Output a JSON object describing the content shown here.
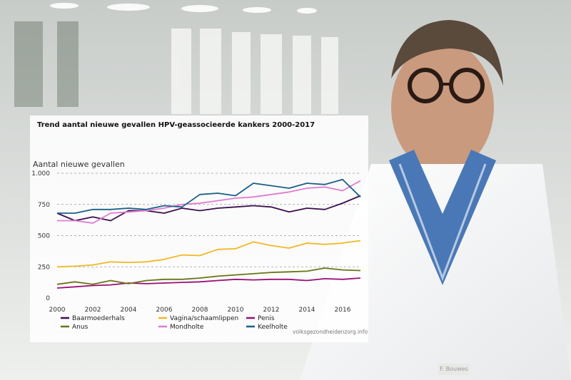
{
  "chart_data": {
    "type": "line",
    "title": "Trend aantal nieuwe gevallen HPV-geassocieerde kankers 2000-2017",
    "ylabel": "Aantal nieuwe gevallen",
    "xlabel": "",
    "ylim": [
      0,
      1000
    ],
    "xlim": [
      2000,
      2017
    ],
    "yticks": [
      0,
      250,
      500,
      750,
      1000
    ],
    "ytick_labels": [
      "0",
      "250",
      "500",
      "750",
      "1.000"
    ],
    "xticks": [
      2000,
      2002,
      2004,
      2006,
      2008,
      2010,
      2012,
      2014,
      2016
    ],
    "ytick_gridlines": true,
    "legend_position": "bottom",
    "x": [
      2000,
      2001,
      2002,
      2003,
      2004,
      2005,
      2006,
      2007,
      2008,
      2009,
      2010,
      2011,
      2012,
      2013,
      2014,
      2015,
      2016,
      2017
    ],
    "series": [
      {
        "name": "Baarmoederhals",
        "color": "#3c0f4f",
        "values": [
          680,
          620,
          650,
          620,
          700,
          700,
          680,
          720,
          700,
          720,
          730,
          740,
          730,
          690,
          720,
          710,
          760,
          820
        ]
      },
      {
        "name": "Vagina/schaamlippen",
        "color": "#f2b824",
        "values": [
          250,
          255,
          265,
          290,
          285,
          290,
          310,
          345,
          340,
          390,
          395,
          450,
          420,
          400,
          440,
          430,
          440,
          460
        ]
      },
      {
        "name": "Penis",
        "color": "#9a0e78",
        "values": [
          80,
          90,
          100,
          105,
          120,
          115,
          120,
          125,
          130,
          140,
          150,
          145,
          150,
          150,
          140,
          155,
          150,
          160
        ]
      },
      {
        "name": "Anus",
        "color": "#6b7417",
        "values": [
          110,
          130,
          110,
          140,
          115,
          140,
          150,
          150,
          160,
          175,
          185,
          195,
          205,
          210,
          215,
          240,
          225,
          220
        ]
      },
      {
        "name": "Mondholte",
        "color": "#e17ad3",
        "values": [
          620,
          620,
          600,
          680,
          690,
          700,
          720,
          750,
          760,
          780,
          800,
          810,
          830,
          850,
          880,
          890,
          860,
          940
        ]
      },
      {
        "name": "Keelholte",
        "color": "#1b5f88",
        "values": [
          680,
          680,
          710,
          710,
          720,
          710,
          740,
          730,
          830,
          840,
          820,
          920,
          900,
          880,
          920,
          910,
          950,
          810
        ]
      }
    ]
  },
  "credit": "volksgezondheidenzorg.info",
  "badge": "F. Bouwes"
}
